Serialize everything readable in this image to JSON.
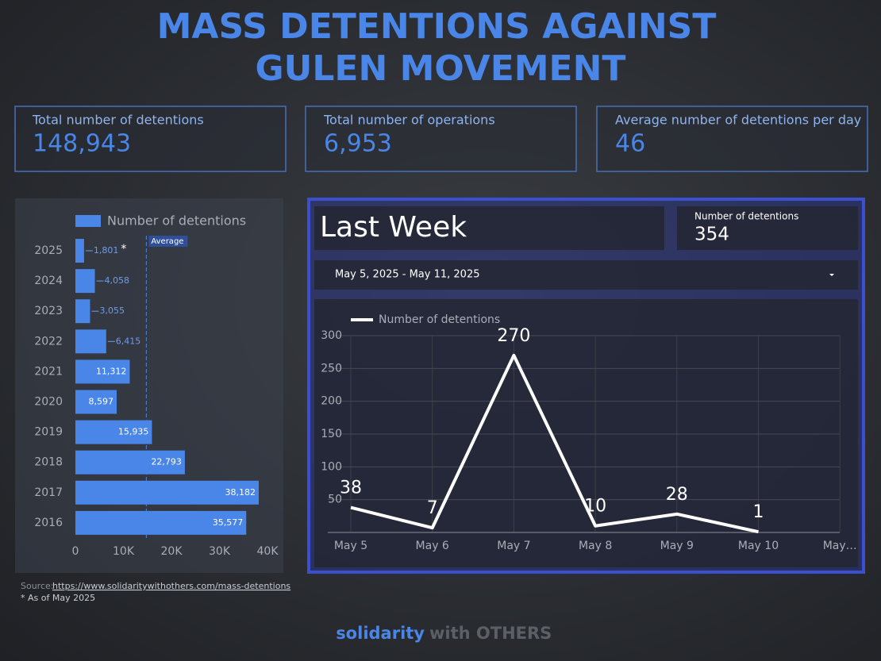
{
  "header": {
    "title_lines": [
      "MASS DETENTIONS AGAINST",
      "GULEN MOVEMENT"
    ]
  },
  "kpis": [
    {
      "label": "Total number of detentions",
      "value": "148,943"
    },
    {
      "label": "Total number of operations",
      "value": "6,953"
    },
    {
      "label": "Average number of detentions per day",
      "value": "46"
    }
  ],
  "last_week": {
    "title": "Last Week",
    "metric_label": "Number of detentions",
    "metric_value": "354",
    "date_range": "May 5, 2025 - May 11, 2025"
  },
  "chart_data": [
    {
      "type": "hbar",
      "categories": [
        "2025",
        "2024",
        "2023",
        "2022",
        "2021",
        "2020",
        "2019",
        "2018",
        "2017",
        "2016"
      ],
      "series": [
        {
          "name": "Number of detentions",
          "color": "#4a86e8",
          "values": [
            1801,
            4058,
            3055,
            6415,
            11312,
            8597,
            15935,
            22793,
            38182,
            35577
          ],
          "value_labels": [
            "1,801",
            "4,058",
            "3,055",
            "6,415",
            "11,312",
            "8,597",
            "15,935",
            "22,793",
            "38,182",
            "35,577"
          ]
        }
      ],
      "annotation": "*",
      "reference_line": {
        "label": "Average",
        "value": 14773
      },
      "xlim": [
        0,
        40000
      ],
      "xticks": [
        0,
        {
          "value": 10000,
          "label": "10K"
        },
        {
          "value": 20000,
          "label": "20K"
        },
        {
          "value": 30000,
          "label": "30K"
        },
        {
          "value": 40000,
          "label": "40K"
        }
      ]
    },
    {
      "type": "line",
      "categories": [
        "May 5",
        "May 6",
        "May 7",
        "May 8",
        "May 9",
        "May 10",
        "May…"
      ],
      "series": [
        {
          "name": "Number of detentions",
          "color": "#ffffff",
          "values": [
            38,
            7,
            270,
            10,
            28,
            1,
            null
          ]
        }
      ],
      "ylim": [
        0,
        300
      ],
      "yticks": [
        50,
        100,
        150,
        200,
        250,
        300
      ],
      "grid": true
    }
  ],
  "source": {
    "prefix": "Source:",
    "url": "https://www.solidaritywithothers.com/mass-detentions",
    "note": "* As of May 2025"
  },
  "footer": {
    "brand": "solidarity",
    "tagline": "with OTHERS"
  }
}
